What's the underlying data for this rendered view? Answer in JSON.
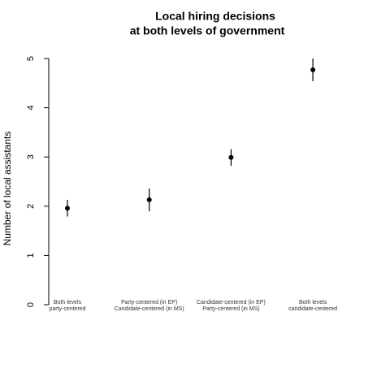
{
  "chart_data": {
    "type": "pointrange",
    "title": [
      "Local hiring decisions",
      "at both levels of government"
    ],
    "y_label": "Number of local assistants",
    "categories": [
      [
        "Both levels",
        "party-centered"
      ],
      [
        "Party-centered (in EP)",
        "Candidate-centered (in MS)"
      ],
      [
        "Candidate-centered (in EP)",
        "Party-centered (in MS)"
      ],
      [
        "Both levels",
        "candidate-centered"
      ]
    ],
    "values": [
      1.96,
      2.13,
      2.99,
      4.77
    ],
    "errors": [
      0.17,
      0.23,
      0.17,
      0.23
    ],
    "color": "#000000",
    "ylim": [
      0,
      5
    ],
    "yticks": [
      0,
      1,
      2,
      3,
      4,
      5
    ]
  }
}
